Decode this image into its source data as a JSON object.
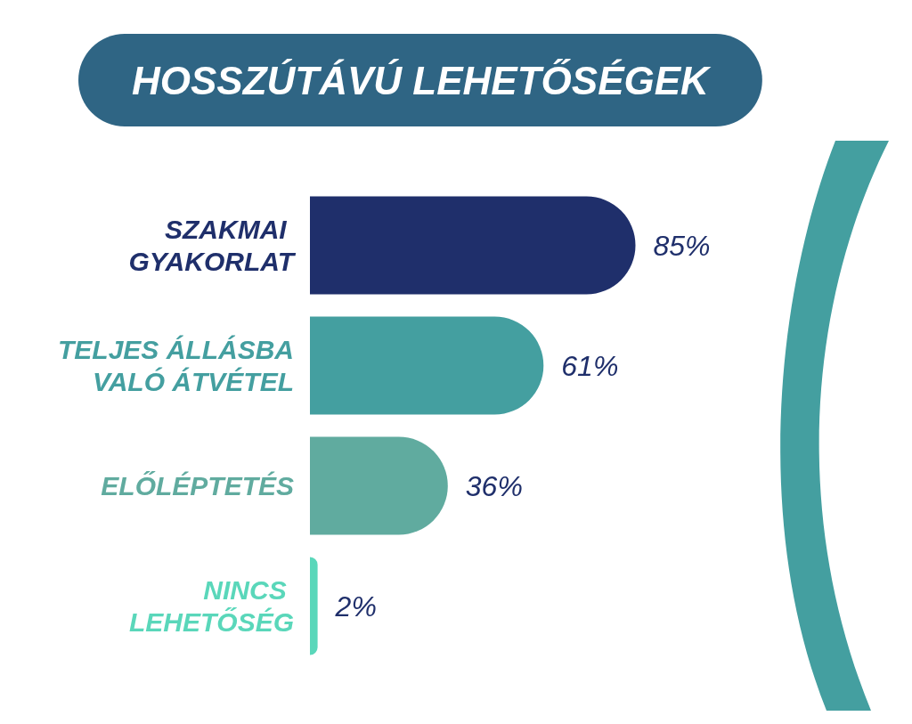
{
  "chart_data": {
    "type": "bar",
    "orientation": "horizontal",
    "title": "HOSSZÚTÁVÚ LEHETŐSÉGEK",
    "categories": [
      "SZAKMAI GYAKORLAT",
      "TELJES ÁLLÁSBA VALÓ ÁTVÉTEL",
      "ELŐLÉPTETÉS",
      "NINCS LEHETŐSÉG"
    ],
    "values": [
      85,
      61,
      36,
      2
    ],
    "colors": [
      "#1f2f6b",
      "#449fa0",
      "#60ab9f",
      "#5ad7ba"
    ],
    "value_labels": [
      "85%",
      "61%",
      "36%",
      "2%"
    ]
  }
}
